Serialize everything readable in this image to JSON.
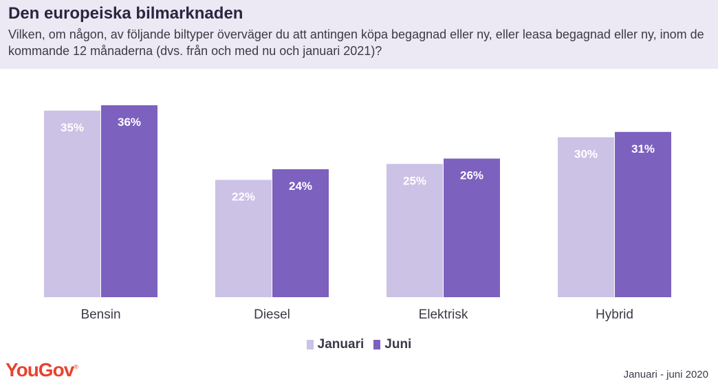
{
  "header": {
    "title": "Den europeiska bilmarknaden",
    "subtitle": "Vilken, om någon, av följande biltyper överväger du att antingen köpa begagnad eller ny, eller leasa begagnad eller ny, inom de kommande 12 månaderna (dvs. från och med nu och januari 2021)?"
  },
  "chart_data": {
    "type": "bar",
    "title": "Den europeiska bilmarknaden",
    "categories": [
      "Bensin",
      "Diesel",
      "Elektrisk",
      "Hybrid"
    ],
    "series": [
      {
        "name": "Januari",
        "values": [
          35,
          22,
          25,
          30
        ],
        "labels": [
          "35%",
          "22%",
          "25%",
          "30%"
        ],
        "color": "#cbc2e6"
      },
      {
        "name": "Juni",
        "values": [
          36,
          24,
          26,
          31
        ],
        "labels": [
          "36%",
          "24%",
          "26%",
          "31%"
        ],
        "color": "#7c61be"
      }
    ],
    "ylim": [
      0,
      36
    ],
    "grid": false,
    "legend": "bottom-center"
  },
  "legend": {
    "januari": "Januari",
    "juni": "Juni"
  },
  "brand": {
    "logo_text": "YouGov",
    "logo_mark": "®",
    "color": "#e8432e"
  },
  "footnote": "Januari - juni 2020"
}
